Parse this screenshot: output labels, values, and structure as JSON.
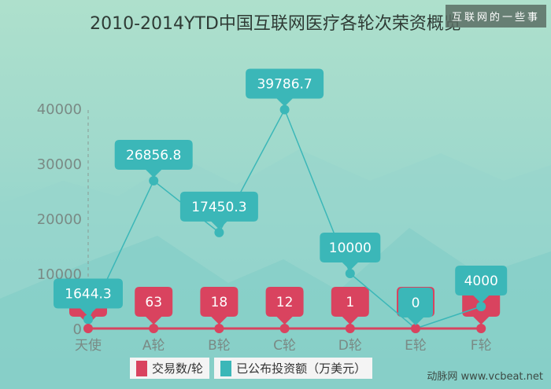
{
  "watermark": "互联网的一些事",
  "source": "动脉网 www.vcbeat.net",
  "chart_data": {
    "type": "line",
    "title": "2010-2014YTD中国互联网医疗各轮次荣资概览",
    "categories": [
      "天使",
      "A轮",
      "B轮",
      "C轮",
      "D轮",
      "E轮",
      "F轮"
    ],
    "yticks": [
      "0",
      "10000",
      "20000",
      "30000",
      "40000"
    ],
    "ylim": [
      0,
      40000
    ],
    "grid": false,
    "legend_placement": "bottom",
    "series": [
      {
        "name": "交易数/轮",
        "color": "#d9435f",
        "values": [
          null,
          63,
          18,
          12,
          1,
          null,
          null
        ],
        "labels": [
          "",
          "63",
          "18",
          "12",
          "1",
          "",
          ""
        ]
      },
      {
        "name": "已公布投资额（万美元）",
        "color": "#3bb7b8",
        "values": [
          1644.3,
          26856.8,
          17450.3,
          39786.7,
          10000,
          0,
          4000
        ],
        "labels": [
          "1644.3",
          "26856.8",
          "17450.3",
          "39786.7",
          "10000",
          "0",
          "4000"
        ]
      }
    ]
  }
}
